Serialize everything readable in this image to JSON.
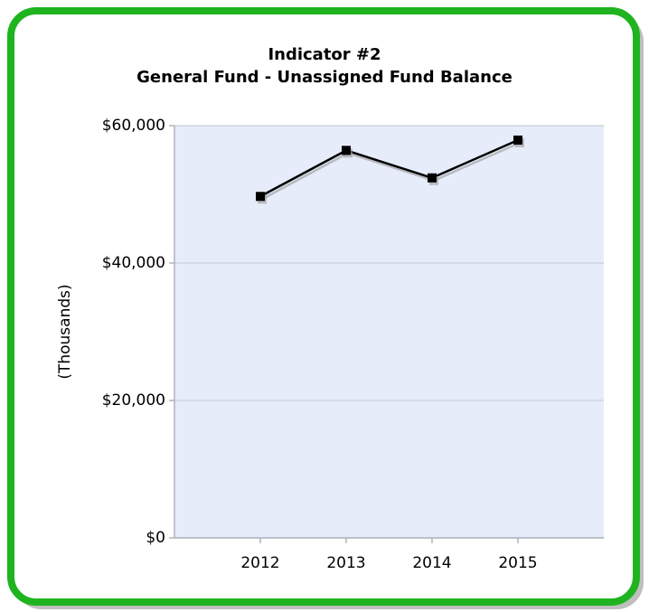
{
  "chart_data": {
    "type": "line",
    "title": "Indicator #2",
    "subtitle": "General Fund - Unassigned Fund Balance",
    "y_label": "(Thousands)",
    "x": [
      2012,
      2013,
      2014,
      2015
    ],
    "values": [
      49700,
      56400,
      52400,
      57900
    ],
    "color": "#000000",
    "xlim": [
      2011,
      2016
    ],
    "xticks": [
      2012,
      2013,
      2014,
      2015
    ],
    "ylim": [
      0,
      60000
    ],
    "yticks": [
      {
        "value": 0,
        "label": "$0"
      },
      {
        "value": 20000,
        "label": "$20,000"
      },
      {
        "value": 40000,
        "label": "$40,000"
      },
      {
        "value": 60000,
        "label": "$60,000"
      }
    ],
    "grid": true
  }
}
